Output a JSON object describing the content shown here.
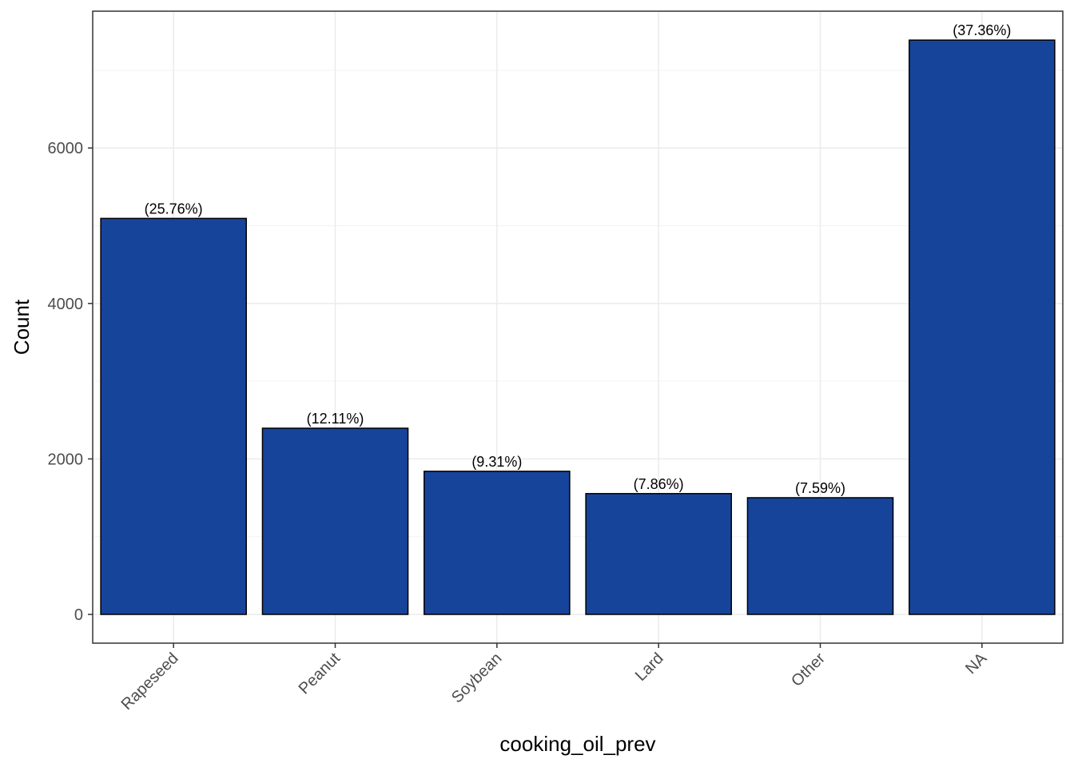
{
  "chart_data": {
    "type": "bar",
    "title": "",
    "xlabel": "cooking_oil_prev",
    "ylabel": "Count",
    "categories": [
      "Rapeseed",
      "Peanut",
      "Soybean",
      "Lard",
      "Other",
      "NA"
    ],
    "values": [
      5094,
      2395,
      1841,
      1554,
      1501,
      7388
    ],
    "data_labels": [
      "(25.76%)",
      "(12.11%)",
      "(9.31%)",
      "(7.86%)",
      "(7.59%)",
      "(37.36%)"
    ],
    "y_ticks": [
      0,
      2000,
      4000,
      6000
    ],
    "y_tick_labels": [
      "0",
      "2000",
      "4000",
      "6000"
    ],
    "ylim": [
      -370,
      7760
    ],
    "grid": true,
    "legend": "none",
    "x_tick_rotation_deg": 45
  },
  "colors": {
    "bar_fill": "#17449B",
    "bar_stroke": "#000000",
    "grid_major": "#EBEBEB",
    "grid_minor": "#F3F3F3",
    "panel_border": "#333333",
    "tick_text": "#4D4D4D"
  }
}
